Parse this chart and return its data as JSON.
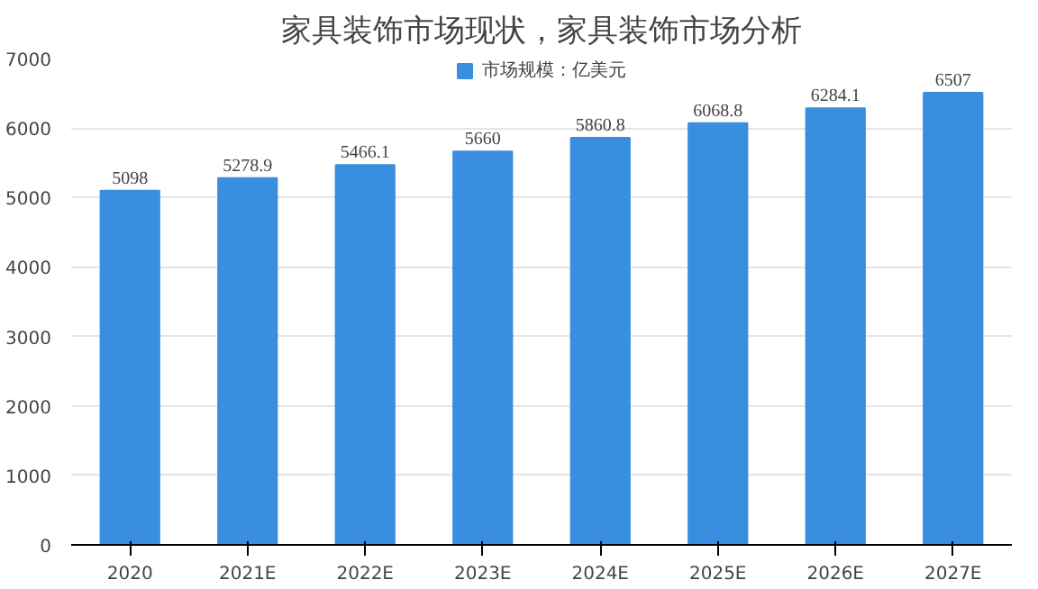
{
  "chart_data": {
    "type": "bar",
    "title": "家具装饰市场现状，家具装饰市场分析",
    "categories": [
      "2020",
      "2021E",
      "2022E",
      "2023E",
      "2024E",
      "2025E",
      "2026E",
      "2027E"
    ],
    "series": [
      {
        "name": "市场规模：亿美元",
        "color": "#3a8ee0",
        "values": [
          5098,
          5278.9,
          5466.1,
          5660,
          5860.8,
          6068.8,
          6284.1,
          6507
        ]
      }
    ],
    "ylim": [
      0,
      7000
    ],
    "yticks": [
      0,
      1000,
      2000,
      3000,
      4000,
      5000,
      6000,
      7000
    ],
    "grid": "y",
    "legend": "top",
    "data_labels": true
  }
}
